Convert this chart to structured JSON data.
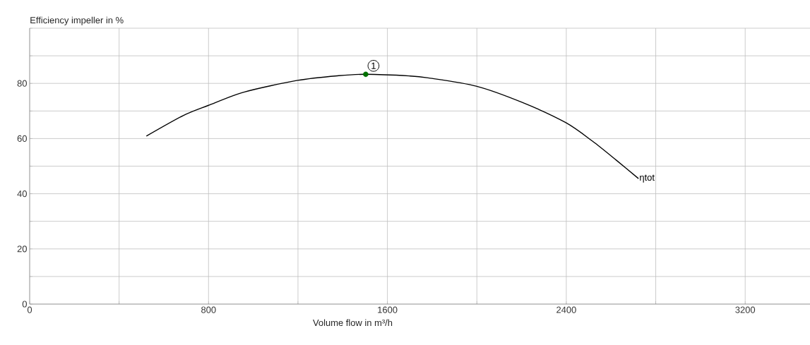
{
  "chart_data": {
    "type": "line",
    "ylabel": "Efficiency impeller in %",
    "xlabel": "Volume flow in m³/h",
    "xlim": [
      0,
      3490
    ],
    "ylim": [
      0,
      100
    ],
    "xticks": [
      0,
      {
        "value": 400,
        "label": null
      },
      800,
      {
        "value": 1200,
        "label": null
      },
      1600,
      {
        "value": 2000,
        "label": null
      },
      2400,
      {
        "value": 2800,
        "label": null
      },
      3200
    ],
    "yticks": [
      0,
      {
        "value": 10,
        "label": null
      },
      20,
      {
        "value": 30,
        "label": null
      },
      40,
      {
        "value": 50,
        "label": null
      },
      60,
      {
        "value": 70,
        "label": null
      },
      80,
      {
        "value": 90,
        "label": null
      },
      {
        "value": 100,
        "label": null
      }
    ],
    "grid": true,
    "legend": false,
    "marker": "none",
    "line_style": "solid",
    "series": [
      {
        "name": "ηtot",
        "color": "#000000",
        "x": [
          522,
          688,
          798,
          961,
          1198,
          1382,
          1503,
          1698,
          1782,
          1997,
          2203,
          2397,
          2518,
          2623,
          2723
        ],
        "values": [
          60.9,
          68.4,
          72.0,
          76.9,
          81.1,
          82.8,
          83.3,
          82.7,
          82.0,
          79.0,
          73.1,
          65.8,
          59.0,
          52.2,
          45.5
        ]
      },
      {
        "type": "scatter",
        "marker": "circle",
        "color": "#007000",
        "x": [
          1503
        ],
        "values": [
          83.3
        ]
      }
    ],
    "annotations": [
      {
        "text": "1",
        "x": 1503,
        "y": 83.3
      }
    ]
  }
}
